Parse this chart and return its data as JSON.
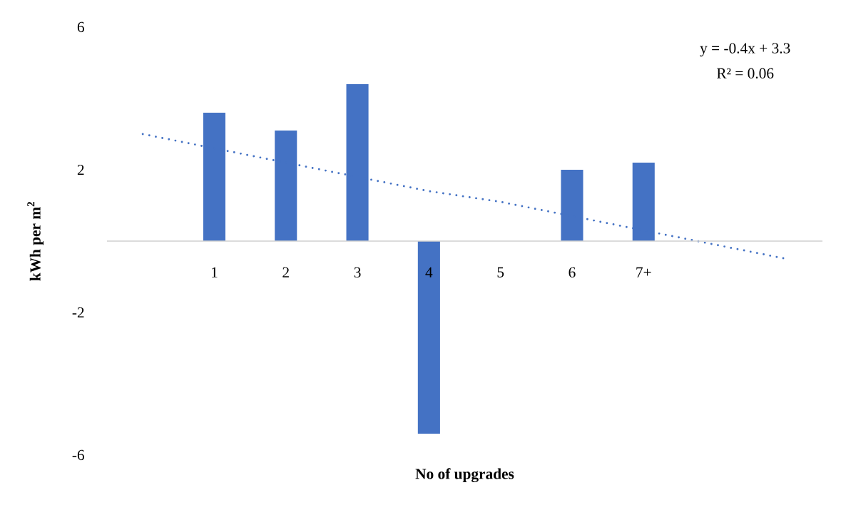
{
  "chart_data": {
    "type": "bar",
    "xlabel": "No of upgrades",
    "ylabel": "kWh per m$^{2}$",
    "categories": [
      null,
      "1",
      "2",
      "3",
      "4",
      "5",
      "6",
      "7+",
      null,
      null
    ],
    "series": [
      {
        "color": "#4472c4",
        "values": [
          null,
          3.6,
          3.1,
          4.4,
          -5.4,
          0,
          2.0,
          2.2,
          null,
          null
        ]
      },
      {
        "type": "line",
        "color": "#4472c4",
        "line_style": "dotted",
        "values": [
          3.0,
          2.6,
          2.2,
          1.8,
          1.4,
          1.1,
          0.7,
          0.3,
          -0.1,
          -0.5
        ]
      }
    ],
    "ylim": [
      -6,
      6
    ],
    "yticks": [
      -6,
      -2,
      2,
      6
    ],
    "marker": "none",
    "annotations": [
      "y = -0.4x + 3.3",
      "R² = 0.06"
    ]
  }
}
